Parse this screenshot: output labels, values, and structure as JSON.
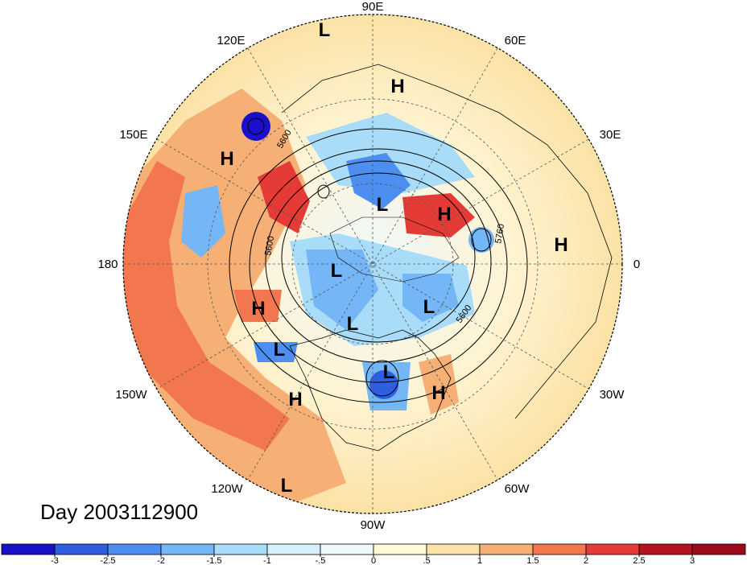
{
  "figure": {
    "date_label": "Day 2003112900"
  },
  "map": {
    "projection": "polar-stereographic-north",
    "longitude_labels": {
      "lon_90e": "90E",
      "lon_60e": "60E",
      "lon_120e": "120E",
      "lon_150e": "150E",
      "lon_30e": "30E",
      "lon_180": "180",
      "lon_0": "0",
      "lon_150w": "150W",
      "lon_30w": "30W",
      "lon_120w": "120W",
      "lon_60w": "60W",
      "lon_90w": "90W"
    },
    "contour_labels": {
      "c1": "5600",
      "c2": "5600",
      "c3": "5600",
      "c4": "5760"
    },
    "pressure_centers": {
      "high_label": "H",
      "low_label": "L"
    }
  },
  "colorbar": {
    "ticks": [
      "-3",
      "-2.5",
      "-2",
      "-1.5",
      "-1",
      "-.5",
      "0",
      ".5",
      "1",
      "1.5",
      "2",
      "2.5",
      "3"
    ],
    "colors": [
      "#1a10c8",
      "#2f5ee0",
      "#4d8ff0",
      "#74b6f6",
      "#a8dcf8",
      "#d4f0fa",
      "#eef8fb",
      "#fff9d8",
      "#fbe2a6",
      "#f6b076",
      "#f2774f",
      "#e43b36",
      "#b41420",
      "#9d0a1c"
    ]
  }
}
